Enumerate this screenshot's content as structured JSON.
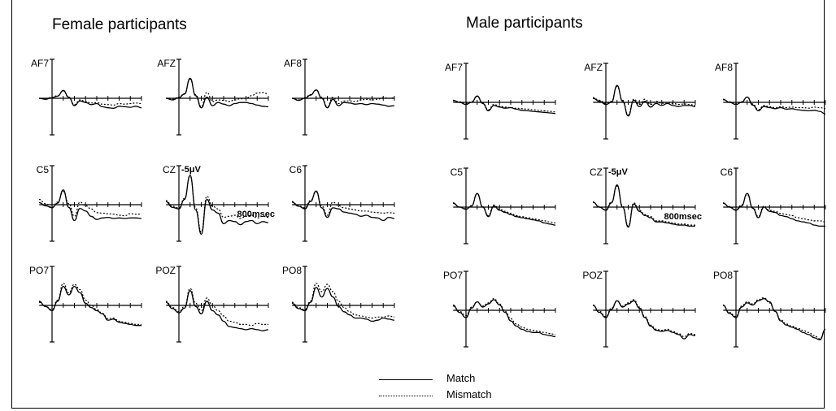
{
  "chart_data": {
    "type": "line",
    "groups": [
      {
        "title": "Female participants"
      },
      {
        "title": "Male participants"
      }
    ],
    "electrodes": [
      [
        "AF7",
        "AFZ",
        "AF8"
      ],
      [
        "C5",
        "CZ",
        "C6"
      ],
      [
        "PO7",
        "POZ",
        "PO8"
      ]
    ],
    "scale_label": "-5μV",
    "time_label": "800msec",
    "x_range_ms": [
      -100,
      800
    ],
    "y_range_uv": [
      -5,
      5
    ],
    "tick_step_ms": 100,
    "legend": [
      {
        "label": "Match",
        "style": "solid",
        "color": "#000000"
      },
      {
        "label": "Mismatch",
        "style": "dotted",
        "color": "#000000"
      }
    ],
    "series_time_ms": [
      -100,
      -50,
      0,
      50,
      100,
      150,
      200,
      250,
      300,
      350,
      400,
      450,
      500,
      550,
      600,
      650,
      700,
      750,
      800
    ],
    "waveforms": {
      "female": {
        "AF7": {
          "match": [
            0,
            -0.2,
            0.1,
            0.4,
            1.5,
            0.2,
            -1.4,
            -0.5,
            -0.8,
            -1.2,
            -1.0,
            -1.6,
            -1.8,
            -1.9,
            -1.5,
            -1.6,
            -1.7,
            -1.5,
            -1.8
          ],
          "mismatch": [
            0,
            -0.1,
            0.2,
            0.5,
            1.4,
            0.1,
            -1.2,
            -0.3,
            -0.6,
            -0.9,
            -0.8,
            -1.1,
            -1.2,
            -1.3,
            -1.0,
            -1.1,
            -1.0,
            -0.9,
            -1.0
          ]
        },
        "AFZ": {
          "match": [
            0,
            -0.3,
            0.1,
            0.8,
            3.8,
            0.5,
            -1.8,
            0.2,
            -1.4,
            -0.8,
            -1.1,
            -1.4,
            -1.0,
            -0.8,
            -0.8,
            -1.0,
            -1.3,
            -1.5,
            -1.6
          ],
          "mismatch": [
            0,
            -0.2,
            0.2,
            0.9,
            3.6,
            0.7,
            -1.6,
            1.1,
            -0.6,
            -0.3,
            -0.4,
            -0.6,
            -0.3,
            -0.1,
            0.0,
            0.5,
            1.0,
            1.1,
            0.8
          ]
        },
        "AF8": {
          "match": [
            0,
            -0.4,
            0.0,
            0.6,
            1.6,
            0.0,
            -1.8,
            -0.2,
            -1.4,
            -0.8,
            -0.9,
            -1.1,
            -1.0,
            -1.2,
            -1.0,
            -1.1,
            -1.3,
            -1.5,
            -1.4
          ],
          "mismatch": [
            0,
            -0.3,
            0.1,
            0.7,
            1.5,
            0.2,
            -1.6,
            0.2,
            -1.0,
            -0.5,
            -0.5,
            -0.6,
            -0.3,
            -0.2,
            -0.3,
            -0.2,
            0.1,
            0.0,
            0.1
          ]
        },
        "C5": {
          "match": [
            0.4,
            -0.2,
            -0.6,
            0.3,
            2.8,
            -0.5,
            -3.0,
            -0.7,
            -1.2,
            -2.2,
            -2.8,
            -2.5,
            -2.4,
            -2.6,
            -2.5,
            -2.6,
            -2.5,
            -2.5,
            -2.6
          ],
          "mismatch": [
            1.0,
            0.2,
            -0.5,
            0.5,
            2.5,
            0.2,
            -2.2,
            0.5,
            -0.2,
            -0.8,
            -1.5,
            -1.6,
            -1.7,
            -1.8,
            -2.0,
            -2.1,
            -1.7,
            -1.8,
            -1.8
          ]
        },
        "CZ": {
          "match": [
            0.6,
            -0.5,
            -0.8,
            1.0,
            5.6,
            -1.0,
            -5.6,
            1.0,
            -1.0,
            -1.6,
            -3.6,
            -3.0,
            -3.2,
            -3.8,
            -3.2,
            -3.0,
            -3.6,
            -3.2,
            -3.4
          ],
          "mismatch": [
            0.8,
            -0.3,
            -0.6,
            1.2,
            5.4,
            -0.6,
            -5.2,
            1.6,
            -0.3,
            -0.8,
            -2.4,
            -2.2,
            -2.0,
            -2.6,
            -2.2,
            -2.0,
            -2.5,
            -2.2,
            -2.4
          ]
        },
        "C6": {
          "match": [
            0.5,
            -0.3,
            -0.8,
            0.6,
            2.6,
            -0.6,
            -2.4,
            -0.6,
            -0.8,
            -1.4,
            -1.6,
            -1.8,
            -2.2,
            -2.0,
            -2.4,
            -2.5,
            -3.0,
            -2.4,
            -2.6
          ],
          "mismatch": [
            0.6,
            -0.2,
            -0.6,
            0.8,
            2.4,
            -0.2,
            -2.0,
            0.5,
            -0.2,
            -0.6,
            -0.8,
            -1.0,
            -1.2,
            -1.2,
            -1.4,
            -1.5,
            -1.6,
            -1.5,
            -1.6
          ]
        },
        "PO7": {
          "match": [
            0.8,
            -0.2,
            -1.0,
            0.8,
            3.6,
            2.0,
            3.6,
            2.4,
            0.4,
            -0.4,
            -1.0,
            -1.6,
            -2.8,
            -2.6,
            -3.2,
            -3.4,
            -3.6,
            -3.8,
            -3.8
          ],
          "mismatch": [
            0.6,
            -0.2,
            -0.8,
            1.0,
            4.2,
            2.4,
            4.0,
            3.0,
            1.0,
            0.0,
            -0.8,
            -1.5,
            -2.5,
            -2.4,
            -3.0,
            -3.2,
            -3.4,
            -3.6,
            -3.6
          ]
        },
        "POZ": {
          "match": [
            0.6,
            -0.6,
            -1.4,
            -0.5,
            2.8,
            -0.2,
            -1.6,
            0.8,
            -1.0,
            -1.8,
            -3.0,
            -4.0,
            -4.2,
            -4.4,
            -4.6,
            -4.4,
            -4.6,
            -4.8,
            -4.6
          ],
          "mismatch": [
            0.8,
            -0.4,
            -1.2,
            -0.2,
            3.2,
            0.4,
            -1.0,
            1.4,
            0.0,
            -1.0,
            -2.0,
            -3.0,
            -3.2,
            -3.6,
            -3.6,
            -3.8,
            -3.4,
            -3.6,
            -3.6
          ]
        },
        "PO8": {
          "match": [
            0.4,
            -0.6,
            -1.0,
            0.6,
            3.4,
            1.6,
            3.2,
            1.6,
            -0.2,
            -1.2,
            -1.8,
            -2.4,
            -2.4,
            -2.6,
            -3.0,
            -2.8,
            -2.4,
            -2.6,
            -2.8
          ],
          "mismatch": [
            0.6,
            -0.4,
            -0.8,
            0.8,
            4.2,
            2.6,
            4.0,
            2.6,
            0.8,
            -0.4,
            -1.2,
            -1.8,
            -2.0,
            -2.2,
            -2.4,
            -2.2,
            -2.2,
            -2.0,
            -2.2
          ]
        }
      },
      "male": {
        "AF7": {
          "match": [
            0.4,
            0.0,
            -0.4,
            0.0,
            1.2,
            -0.2,
            -1.6,
            -0.6,
            -0.9,
            -1.1,
            -1.0,
            -1.3,
            -1.5,
            -1.6,
            -1.7,
            -1.8,
            -1.9,
            -2.0,
            -2.1
          ],
          "mismatch": [
            0.3,
            0.1,
            -0.2,
            0.1,
            1.1,
            -0.1,
            -1.4,
            -0.4,
            -0.7,
            -0.9,
            -1.0,
            -1.1,
            -1.2,
            -1.3,
            -1.4,
            -1.5,
            -1.6,
            -1.7,
            -1.8
          ]
        },
        "AFZ": {
          "match": [
            0.8,
            0.2,
            -0.4,
            0.0,
            3.2,
            0.2,
            -2.6,
            0.4,
            -0.8,
            0.2,
            -0.9,
            -0.2,
            -0.6,
            -0.2,
            -0.6,
            -0.8,
            -0.6,
            -0.6,
            -0.8
          ],
          "mismatch": [
            0.9,
            0.4,
            -0.2,
            0.2,
            3.0,
            0.4,
            -2.4,
            0.6,
            -0.4,
            0.6,
            -0.4,
            0.2,
            -0.2,
            0.0,
            -0.2,
            -0.4,
            -0.3,
            -0.4,
            -0.6
          ]
        },
        "AF8": {
          "match": [
            0.6,
            0.0,
            -0.4,
            0.0,
            1.0,
            -0.5,
            -1.6,
            -0.8,
            -1.0,
            -1.2,
            -1.0,
            -1.3,
            -1.2,
            -1.4,
            -1.5,
            -1.6,
            -1.5,
            -1.7,
            -2.2
          ],
          "mismatch": [
            0.5,
            0.1,
            -0.3,
            0.1,
            1.0,
            -0.3,
            -1.4,
            -0.6,
            -0.8,
            -1.0,
            -0.8,
            -1.0,
            -0.9,
            -1.0,
            -1.0,
            -1.1,
            -0.9,
            -1.0,
            -1.2
          ]
        },
        "C5": {
          "match": [
            0.8,
            0.0,
            -0.4,
            0.2,
            2.6,
            0.0,
            -1.8,
            0.2,
            -0.6,
            -1.0,
            -1.4,
            -1.8,
            -2.0,
            -2.2,
            -2.4,
            -2.6,
            -3.0,
            -3.2,
            -3.4
          ],
          "mismatch": [
            0.7,
            0.0,
            -0.3,
            0.3,
            2.5,
            0.1,
            -1.6,
            0.4,
            -0.4,
            -0.8,
            -1.2,
            -1.6,
            -1.8,
            -2.0,
            -2.2,
            -2.4,
            -2.6,
            -2.8,
            -3.0
          ]
        },
        "CZ": {
          "match": [
            1.0,
            0.0,
            -0.6,
            0.8,
            4.2,
            0.0,
            -3.8,
            0.6,
            -0.8,
            -1.6,
            -2.0,
            -2.8,
            -2.8,
            -3.0,
            -3.2,
            -3.4,
            -3.4,
            -3.6,
            -3.6
          ],
          "mismatch": [
            0.9,
            0.1,
            -0.5,
            1.0,
            4.0,
            0.2,
            -3.6,
            0.8,
            -0.6,
            -1.4,
            -1.8,
            -2.6,
            -2.6,
            -2.8,
            -3.0,
            -3.2,
            -3.2,
            -3.4,
            -3.4
          ]
        },
        "C6": {
          "match": [
            0.8,
            0.0,
            -0.6,
            0.2,
            2.6,
            -0.2,
            -2.0,
            0.0,
            -0.8,
            -1.0,
            -1.6,
            -1.8,
            -2.2,
            -2.6,
            -2.8,
            -3.0,
            -3.4,
            -3.6,
            -3.6
          ],
          "mismatch": [
            0.7,
            0.1,
            -0.5,
            0.4,
            2.4,
            0.0,
            -1.8,
            0.2,
            -0.6,
            -0.8,
            -1.2,
            -1.4,
            -1.6,
            -2.0,
            -2.2,
            -2.4,
            -2.6,
            -2.6,
            -2.8
          ]
        },
        "PO7": {
          "match": [
            1.0,
            -0.4,
            -1.4,
            0.4,
            1.6,
            0.6,
            1.2,
            2.0,
            1.0,
            -0.4,
            -2.0,
            -3.0,
            -3.6,
            -4.0,
            -4.2,
            -4.2,
            -4.6,
            -4.8,
            -5.0
          ],
          "mismatch": [
            0.8,
            -0.2,
            -1.0,
            0.6,
            1.6,
            0.8,
            1.4,
            2.2,
            1.2,
            -0.2,
            -1.6,
            -2.6,
            -3.2,
            -3.6,
            -3.8,
            -4.0,
            -4.2,
            -4.4,
            -4.6
          ]
        },
        "POZ": {
          "match": [
            1.0,
            -0.4,
            -1.4,
            0.2,
            1.8,
            0.6,
            1.2,
            1.8,
            0.4,
            -1.4,
            -3.0,
            -3.8,
            -4.0,
            -3.8,
            -4.2,
            -4.6,
            -5.4,
            -4.6,
            -4.8
          ],
          "mismatch": [
            0.9,
            -0.2,
            -1.2,
            0.4,
            1.8,
            0.8,
            1.4,
            2.0,
            0.6,
            -1.2,
            -2.8,
            -3.6,
            -3.8,
            -3.6,
            -4.0,
            -4.4,
            -5.0,
            -4.4,
            -4.6
          ]
        },
        "PO8": {
          "match": [
            1.0,
            -0.6,
            -1.4,
            0.6,
            1.4,
            1.0,
            1.8,
            2.2,
            1.6,
            -0.2,
            -2.0,
            -2.8,
            -3.2,
            -3.6,
            -4.2,
            -4.6,
            -5.2,
            -5.6,
            -3.6
          ],
          "mismatch": [
            0.9,
            -0.4,
            -1.2,
            0.8,
            1.6,
            1.2,
            2.0,
            2.4,
            1.4,
            -0.2,
            -1.8,
            -2.6,
            -3.0,
            -3.4,
            -3.8,
            -4.2,
            -4.8,
            -5.4,
            -3.8
          ]
        }
      }
    }
  }
}
